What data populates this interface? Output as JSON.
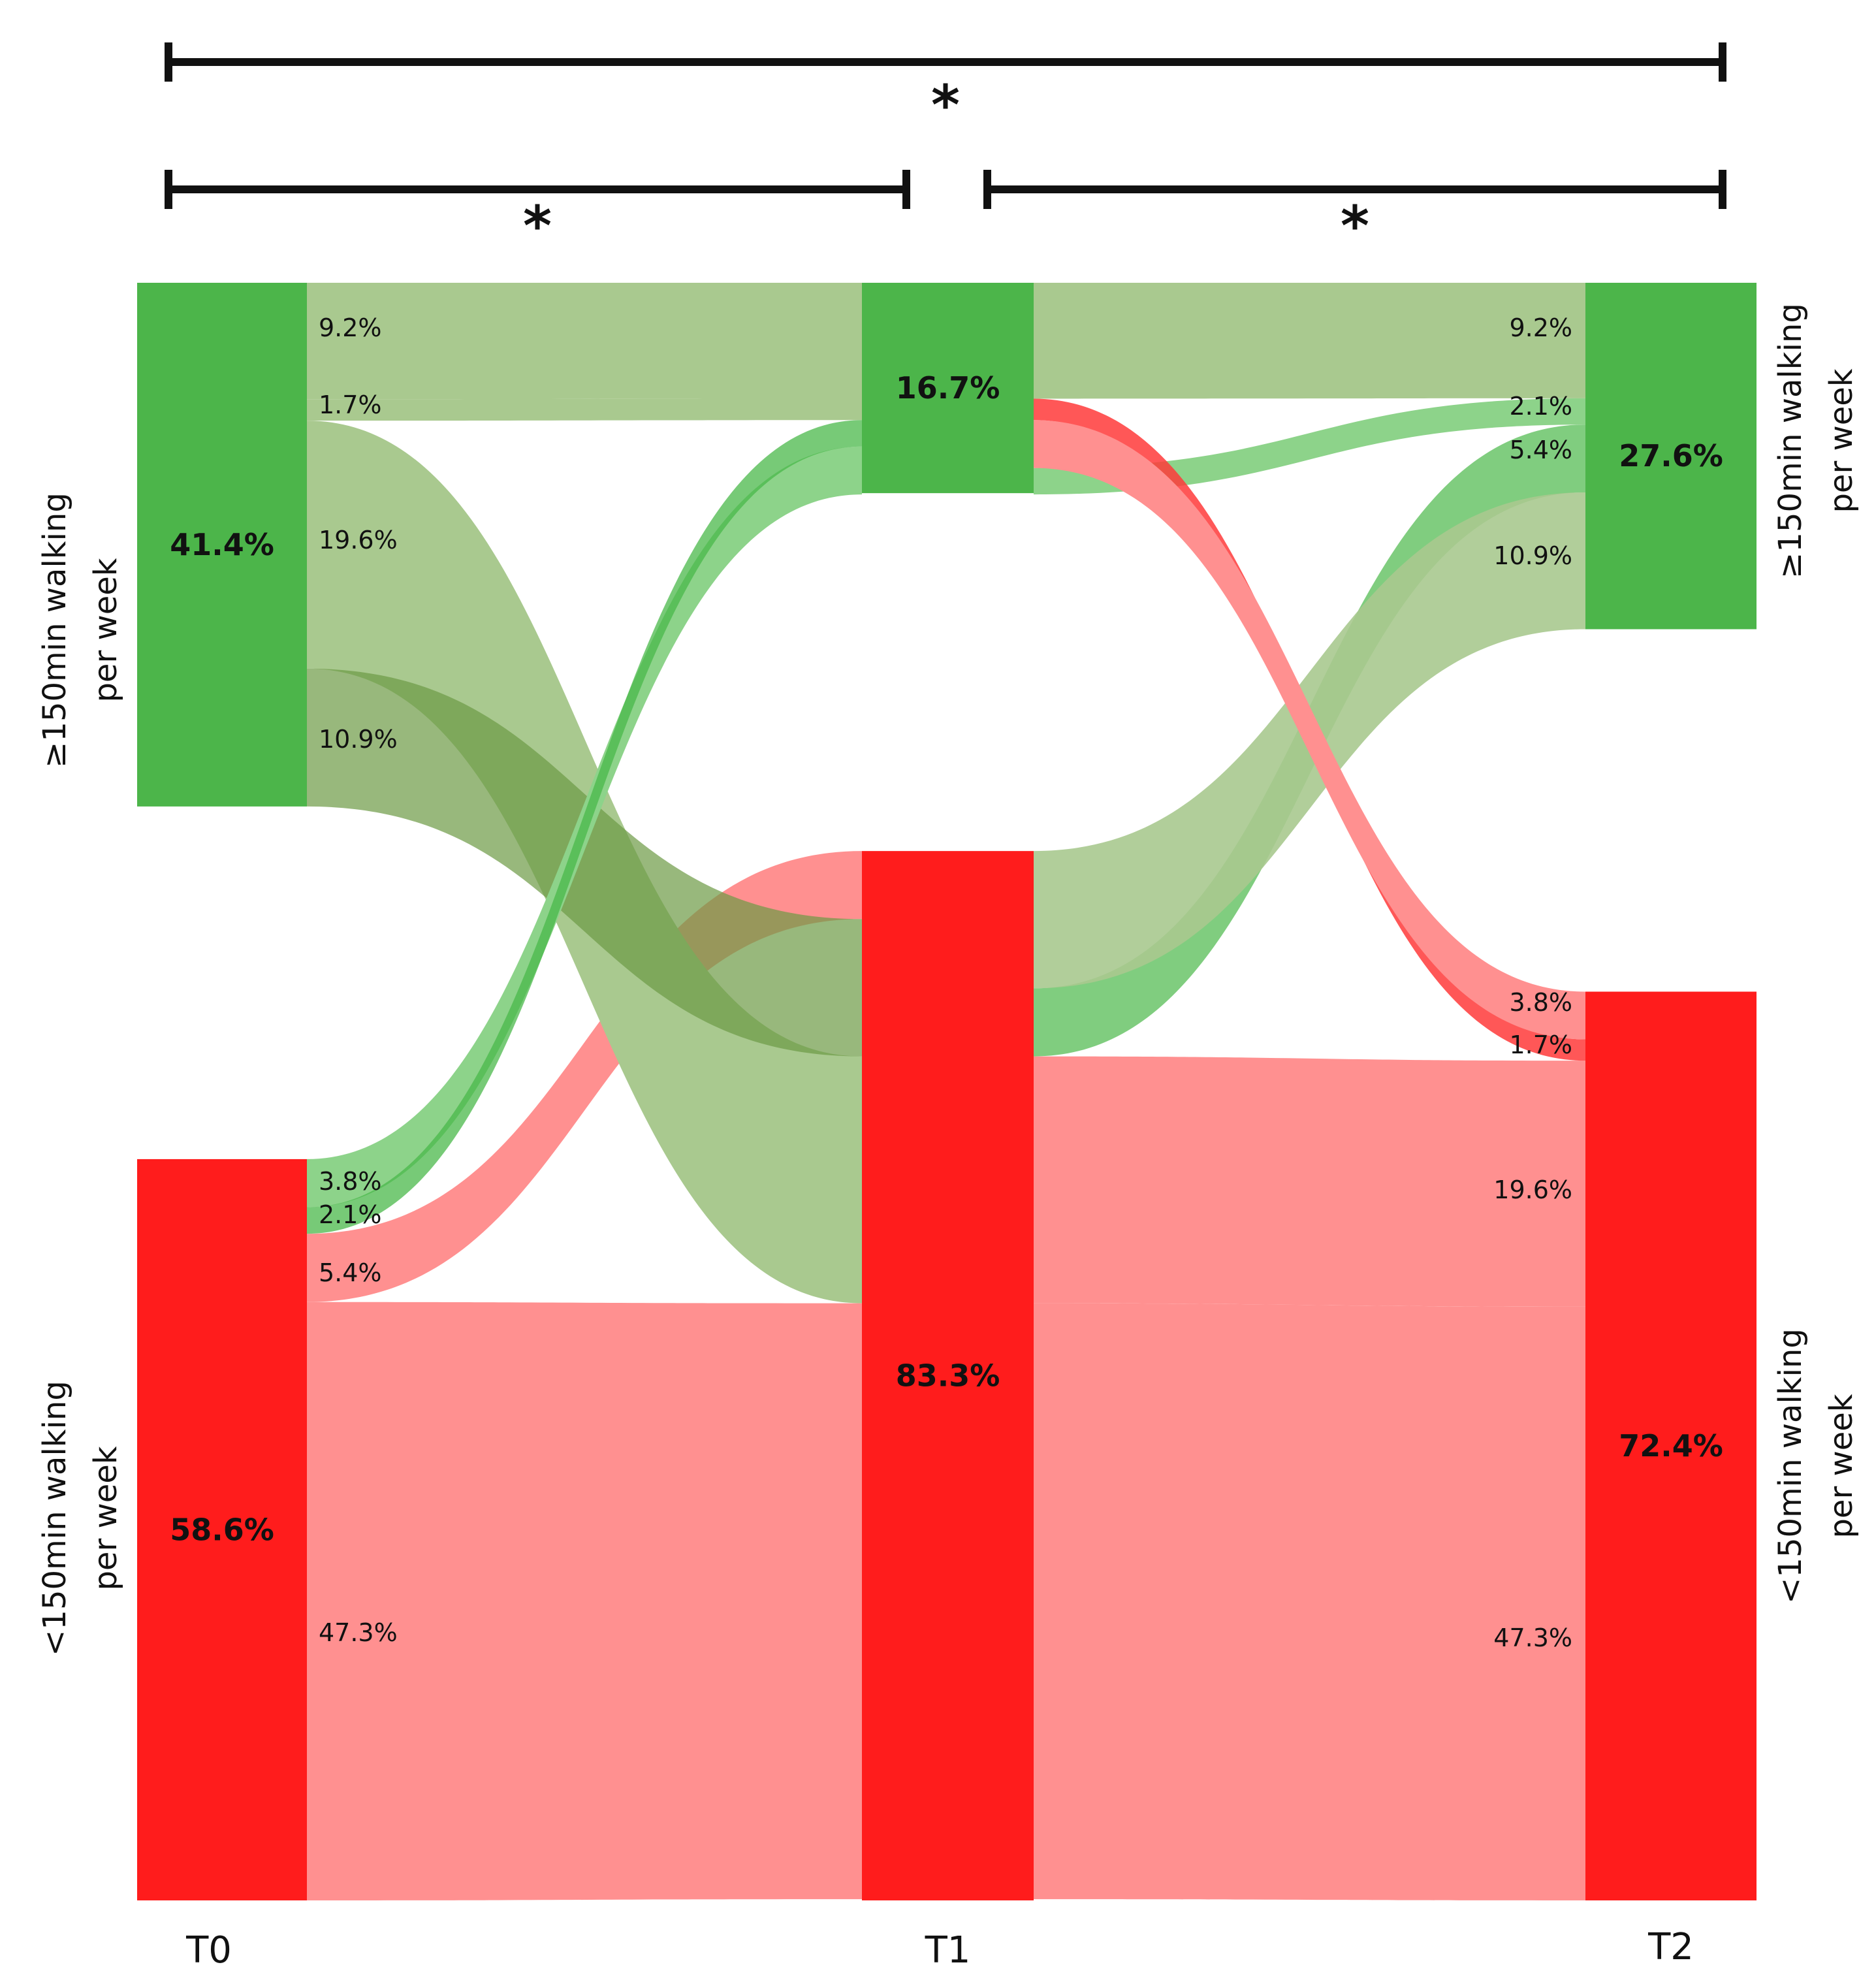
{
  "chart_data": {
    "type": "sankey",
    "time_points": [
      "T0",
      "T1",
      "T2"
    ],
    "state_labels": {
      "active": [
        "≥150min walking",
        "per week"
      ],
      "inactive": [
        "<150min walking",
        "per week"
      ]
    },
    "nodes": [
      {
        "id": "T0_active",
        "time": "T0",
        "state": "active",
        "value": 41.4,
        "label": "41.4%"
      },
      {
        "id": "T0_inactive",
        "time": "T0",
        "state": "inactive",
        "value": 58.6,
        "label": "58.6%"
      },
      {
        "id": "T1_active",
        "time": "T1",
        "state": "active",
        "value": 16.7,
        "label": "16.7%"
      },
      {
        "id": "T1_inactive",
        "time": "T1",
        "state": "inactive",
        "value": 83.3,
        "label": "83.3%"
      },
      {
        "id": "T2_active",
        "time": "T2",
        "state": "active",
        "value": 27.6,
        "label": "27.6%"
      },
      {
        "id": "T2_inactive",
        "time": "T2",
        "state": "inactive",
        "value": 72.4,
        "label": "72.4%"
      }
    ],
    "flows": [
      {
        "path": "≥150 all times",
        "value": 9.2,
        "label": "9.2%",
        "kind": "active"
      },
      {
        "path": "≥150 at T0/T1, <150 at T2",
        "value": 1.7,
        "label": "1.7%",
        "kind": "active-lost"
      },
      {
        "path": "≥150 at T0, <150 at T1/T2",
        "value": 19.6,
        "label": "19.6%",
        "kind": "active-lost"
      },
      {
        "path": "≥150 at T0, <150 at T1, ≥150 at T2",
        "value": 10.9,
        "label": "10.9%",
        "kind": "active-lost"
      },
      {
        "path": "<150 at T0, ≥150 at T1/T2",
        "value": 2.1,
        "label": "2.1%",
        "kind": "gained"
      },
      {
        "path": "<150 at T0, ≥150 at T1, <150 at T2",
        "value": 3.8,
        "label": "3.8%",
        "kind": "gained"
      },
      {
        "path": "<150 at T0/T1, ≥150 at T2",
        "value": 5.4,
        "label": "5.4%",
        "kind": "inactive"
      },
      {
        "path": "<150 all times",
        "value": 47.3,
        "label": "47.3%",
        "kind": "inactive"
      }
    ],
    "significance": [
      {
        "from": "T0",
        "to": "T2",
        "label": "*"
      },
      {
        "from": "T0",
        "to": "T1",
        "label": "*"
      },
      {
        "from": "T1",
        "to": "T2",
        "label": "*"
      }
    ],
    "colors": {
      "active_node": "#4cb54a",
      "inactive_node": "#ff1c1c",
      "active_flow": "#a9c98f",
      "active_lost_dark": "#6c9a44",
      "gained_flow": "#8dd38a",
      "gained_dark": "#4ab849",
      "inactive_flow": "#ff9090",
      "lost_dark": "#ff3a3a"
    }
  }
}
